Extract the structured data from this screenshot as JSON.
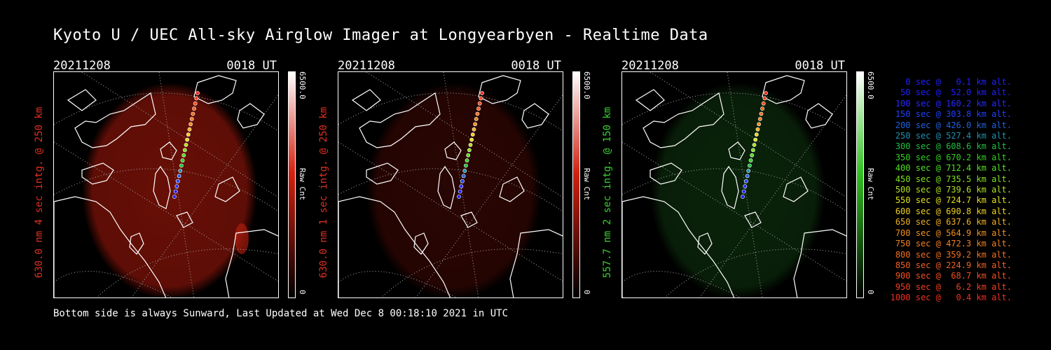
{
  "title": "Kyoto U / UEC All-sky Airglow Imager at Longyearbyen - Realtime Data",
  "footer": "Bottom side is always Sunward, Last Updated at Wed Dec  8 00:18:10 2021 in UTC",
  "panels": [
    {
      "date": "20211208",
      "time": "0018 UT",
      "ylabel": "630.0 nm 4 sec intg. @ 250 km",
      "ylabel_color": "#e03020",
      "cb_max": "6500.0",
      "cb_unit": "Raw Cnt",
      "cb_min": "0",
      "cb_color": "#d02010",
      "glow": "#7a1208",
      "glow_opacity": 0.85
    },
    {
      "date": "20211208",
      "time": "0018 UT",
      "ylabel": "630.0 nm 1 sec intg. @ 250 km",
      "ylabel_color": "#e03020",
      "cb_max": "6500.0",
      "cb_unit": "Raw Cnt",
      "cb_min": "0",
      "cb_color": "#d02010",
      "glow": "#3a0804",
      "glow_opacity": 0.7
    },
    {
      "date": "20211208",
      "time": "0018 UT",
      "ylabel": "557.7 nm 2 sec intg. @ 150 km",
      "ylabel_color": "#3ad030",
      "cb_max": "6500.0",
      "cb_unit": "Raw Cnt",
      "cb_min": "0",
      "cb_color": "#30c020",
      "glow": "#0c2a0c",
      "glow_opacity": 0.8
    }
  ],
  "trajectory": {
    "legend": [
      {
        "t": "0 sec @   0.1 km alt.",
        "color": "#2020ff"
      },
      {
        "t": "50 sec @  52.0 km alt.",
        "color": "#2020ff"
      },
      {
        "t": "100 sec @ 160.2 km alt.",
        "color": "#2828ff"
      },
      {
        "t": "150 sec @ 303.8 km alt.",
        "color": "#2040ff"
      },
      {
        "t": "200 sec @ 426.0 km alt.",
        "color": "#2060e0"
      },
      {
        "t": "250 sec @ 527.4 km alt.",
        "color": "#2090b0"
      },
      {
        "t": "300 sec @ 608.6 km alt.",
        "color": "#20c040"
      },
      {
        "t": "350 sec @ 670.2 km alt.",
        "color": "#30d020"
      },
      {
        "t": "400 sec @ 712.4 km alt.",
        "color": "#50e020"
      },
      {
        "t": "450 sec @ 735.5 km alt.",
        "color": "#80e020"
      },
      {
        "t": "500 sec @ 739.6 km alt.",
        "color": "#b0e020"
      },
      {
        "t": "550 sec @ 724.7 km alt.",
        "color": "#e0e020"
      },
      {
        "t": "600 sec @ 690.8 km alt.",
        "color": "#f0d020"
      },
      {
        "t": "650 sec @ 637.6 km alt.",
        "color": "#f0b020"
      },
      {
        "t": "700 sec @ 564.9 km alt.",
        "color": "#f09020"
      },
      {
        "t": "750 sec @ 472.3 km alt.",
        "color": "#f08020"
      },
      {
        "t": "800 sec @ 359.2 km alt.",
        "color": "#f07020"
      },
      {
        "t": "850 sec @ 224.9 km alt.",
        "color": "#f06020"
      },
      {
        "t": "900 sec @  68.7 km alt.",
        "color": "#f05020"
      },
      {
        "t": "950 sec @   6.2 km alt.",
        "color": "#f04020"
      },
      {
        "t": "1000 sec @   0.4 km alt.",
        "color": "#f03020"
      }
    ]
  }
}
